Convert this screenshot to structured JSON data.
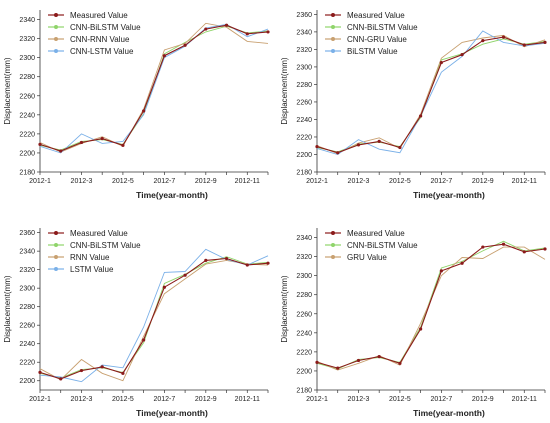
{
  "chart_data": [
    {
      "type": "line",
      "xlabel": "Time(year-month)",
      "ylabel": "Displacement(mm)",
      "ylim": [
        2180,
        2350
      ],
      "yticks": [
        2180,
        2200,
        2220,
        2240,
        2260,
        2280,
        2300,
        2320,
        2340
      ],
      "x": [
        "2012-1",
        "2012-2",
        "2012-3",
        "2012-4",
        "2012-5",
        "2012-6",
        "2012-7",
        "2012-8",
        "2012-9",
        "2012-10",
        "2012-11",
        "2012-12"
      ],
      "xticks": [
        "2012-1",
        "2012-3",
        "2012-5",
        "2012-7",
        "2012-9",
        "2012-11"
      ],
      "legend": "top-left",
      "series": [
        {
          "name": "Measured Value",
          "color": "#8b1a1a",
          "marker": true,
          "values": [
            2209,
            2202,
            2211,
            2215,
            2208,
            2244,
            2302,
            2313,
            2330,
            2334,
            2325,
            2327
          ]
        },
        {
          "name": "CNN-BiLSTM Value",
          "color": "#8fd46a",
          "marker": false,
          "values": [
            2208,
            2203,
            2212,
            2214,
            2209,
            2241,
            2304,
            2316,
            2327,
            2333,
            2326,
            2328
          ]
        },
        {
          "name": "CNN-RNN Value",
          "color": "#c8a070",
          "marker": false,
          "values": [
            2211,
            2201,
            2210,
            2217,
            2207,
            2246,
            2308,
            2315,
            2336,
            2332,
            2317,
            2315
          ]
        },
        {
          "name": "CNN-LSTM  Value",
          "color": "#7ab0e8",
          "marker": false,
          "values": [
            2207,
            2200,
            2220,
            2210,
            2212,
            2240,
            2300,
            2312,
            2331,
            2335,
            2322,
            2330
          ]
        }
      ]
    },
    {
      "type": "line",
      "xlabel": "Time(year-month)",
      "ylabel": "Displacement(mm)",
      "ylim": [
        2180,
        2365
      ],
      "yticks": [
        2180,
        2200,
        2220,
        2240,
        2260,
        2280,
        2300,
        2320,
        2340,
        2360
      ],
      "x": [
        "2012-1",
        "2012-2",
        "2012-3",
        "2012-4",
        "2012-5",
        "2012-6",
        "2012-7",
        "2012-8",
        "2012-9",
        "2012-10",
        "2012-11",
        "2012-12"
      ],
      "xticks": [
        "2012-1",
        "2012-3",
        "2012-5",
        "2012-7",
        "2012-9",
        "2012-11"
      ],
      "legend": "top-left",
      "series": [
        {
          "name": "Measured Value",
          "color": "#8b1a1a",
          "marker": true,
          "values": [
            2209,
            2202,
            2211,
            2215,
            2208,
            2244,
            2305,
            2314,
            2330,
            2334,
            2325,
            2328
          ]
        },
        {
          "name": "CNN-BiLSTM Value",
          "color": "#8fd46a",
          "marker": false,
          "values": [
            2208,
            2203,
            2212,
            2214,
            2209,
            2242,
            2308,
            2315,
            2326,
            2332,
            2326,
            2329
          ]
        },
        {
          "name": "CNN-GRU Value",
          "color": "#c8a070",
          "marker": false,
          "values": [
            2210,
            2201,
            2213,
            2219,
            2207,
            2246,
            2310,
            2328,
            2333,
            2336,
            2323,
            2331
          ]
        },
        {
          "name": "BiLSTM  Value",
          "color": "#7ab0e8",
          "marker": false,
          "values": [
            2207,
            2200,
            2217,
            2206,
            2202,
            2244,
            2294,
            2312,
            2341,
            2328,
            2324,
            2327
          ]
        }
      ]
    },
    {
      "type": "line",
      "xlabel": "Time(year-month)",
      "ylabel": "Displacement(mm)",
      "ylim": [
        2190,
        2365
      ],
      "yticks": [
        2200,
        2220,
        2240,
        2260,
        2280,
        2300,
        2320,
        2340,
        2360
      ],
      "x": [
        "2012-1",
        "2012-2",
        "2012-3",
        "2012-4",
        "2012-5",
        "2012-6",
        "2012-7",
        "2012-8",
        "2012-9",
        "2012-10",
        "2012-11",
        "2012-12"
      ],
      "xticks": [
        "2012-1",
        "2012-3",
        "2012-5",
        "2012-7",
        "2012-9",
        "2012-11"
      ],
      "legend": "top-left",
      "series": [
        {
          "name": "Measured Value",
          "color": "#8b1a1a",
          "marker": true,
          "values": [
            2209,
            2202,
            2211,
            2215,
            2208,
            2244,
            2301,
            2314,
            2330,
            2332,
            2325,
            2327
          ]
        },
        {
          "name": "CNN-BiLSTM Value",
          "color": "#8fd46a",
          "marker": false,
          "values": [
            2208,
            2203,
            2212,
            2214,
            2209,
            2241,
            2305,
            2315,
            2327,
            2334,
            2326,
            2328
          ]
        },
        {
          "name": "RNN Value",
          "color": "#c8a070",
          "marker": false,
          "values": [
            2213,
            2201,
            2223,
            2208,
            2200,
            2248,
            2294,
            2310,
            2326,
            2330,
            2326,
            2325
          ]
        },
        {
          "name": "LSTM Value",
          "color": "#7ab0e8",
          "marker": false,
          "values": [
            2206,
            2204,
            2199,
            2217,
            2214,
            2258,
            2317,
            2318,
            2342,
            2331,
            2325,
            2335
          ]
        }
      ]
    },
    {
      "type": "line",
      "xlabel": "Time(year-month)",
      "ylabel": "Displacement(mm)",
      "ylim": [
        2180,
        2350
      ],
      "yticks": [
        2180,
        2200,
        2220,
        2240,
        2260,
        2280,
        2300,
        2320,
        2340
      ],
      "x": [
        "2012-1",
        "2012-2",
        "2012-3",
        "2012-4",
        "2012-5",
        "2012-6",
        "2012-7",
        "2012-8",
        "2012-9",
        "2012-10",
        "2012-11",
        "2012-12"
      ],
      "xticks": [
        "2012-1",
        "2012-3",
        "2012-5",
        "2012-7",
        "2012-9",
        "2012-11"
      ],
      "legend": "top-left",
      "series": [
        {
          "name": "Measured Value",
          "color": "#8b1a1a",
          "marker": true,
          "values": [
            2209,
            2203,
            2211,
            2215,
            2208,
            2244,
            2305,
            2313,
            2330,
            2333,
            2325,
            2328
          ]
        },
        {
          "name": "CNN-BiLSTM Value",
          "color": "#8fd46a",
          "marker": false,
          "values": [
            2208,
            2202,
            2212,
            2214,
            2209,
            2246,
            2308,
            2315,
            2326,
            2336,
            2326,
            2329
          ]
        },
        {
          "name": "GRU Value",
          "color": "#c8a070",
          "marker": false,
          "values": [
            2210,
            2201,
            2208,
            2216,
            2206,
            2250,
            2300,
            2319,
            2318,
            2330,
            2330,
            2317
          ]
        }
      ]
    }
  ]
}
